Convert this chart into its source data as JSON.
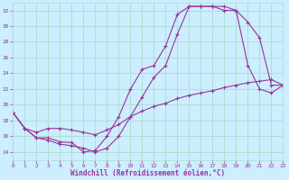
{
  "xlabel": "Windchill (Refroidissement éolien,°C)",
  "bg_color": "#cceeff",
  "line_color": "#993399",
  "grid_color": "#aaddcc",
  "xlim": [
    0,
    23
  ],
  "ylim": [
    13,
    33
  ],
  "xticks": [
    0,
    1,
    2,
    3,
    4,
    5,
    6,
    7,
    8,
    9,
    10,
    11,
    12,
    13,
    14,
    15,
    16,
    17,
    18,
    19,
    20,
    21,
    22,
    23
  ],
  "yticks": [
    14,
    16,
    18,
    20,
    22,
    24,
    26,
    28,
    30,
    32
  ],
  "curve1_x": [
    0,
    1,
    2,
    3,
    4,
    5,
    6,
    7,
    8,
    9,
    10,
    11,
    12,
    13,
    14,
    15,
    16,
    17,
    18,
    19,
    20,
    21,
    22,
    23
  ],
  "curve1_y": [
    19,
    17,
    15.8,
    15.8,
    15.3,
    15.2,
    14.0,
    14.2,
    16.0,
    18.5,
    22.0,
    24.5,
    25.0,
    27.5,
    31.5,
    32.5,
    32.5,
    32.5,
    32.5,
    32.0,
    30.5,
    28.5,
    22.5,
    22.5
  ],
  "curve2_x": [
    0,
    1,
    2,
    3,
    4,
    5,
    6,
    7,
    8,
    9,
    10,
    11,
    12,
    13,
    14,
    15,
    16,
    17,
    18,
    19,
    20,
    21,
    22,
    23
  ],
  "curve2_y": [
    19,
    17,
    15.8,
    15.5,
    15.0,
    14.8,
    14.5,
    14.0,
    14.5,
    16.0,
    18.5,
    21.0,
    23.5,
    25.0,
    29.0,
    32.5,
    32.5,
    32.5,
    32.0,
    32.0,
    25.0,
    22.0,
    21.5,
    22.5
  ],
  "curve3_x": [
    0,
    1,
    2,
    3,
    4,
    5,
    6,
    7,
    8,
    9,
    10,
    11,
    12,
    13,
    14,
    15,
    16,
    17,
    18,
    19,
    20,
    21,
    22,
    23
  ],
  "curve3_y": [
    19,
    17,
    16.5,
    17.0,
    17.0,
    16.8,
    16.5,
    16.2,
    16.8,
    17.5,
    18.5,
    19.2,
    19.8,
    20.2,
    20.8,
    21.2,
    21.5,
    21.8,
    22.2,
    22.5,
    22.8,
    23.0,
    23.2,
    22.5
  ]
}
